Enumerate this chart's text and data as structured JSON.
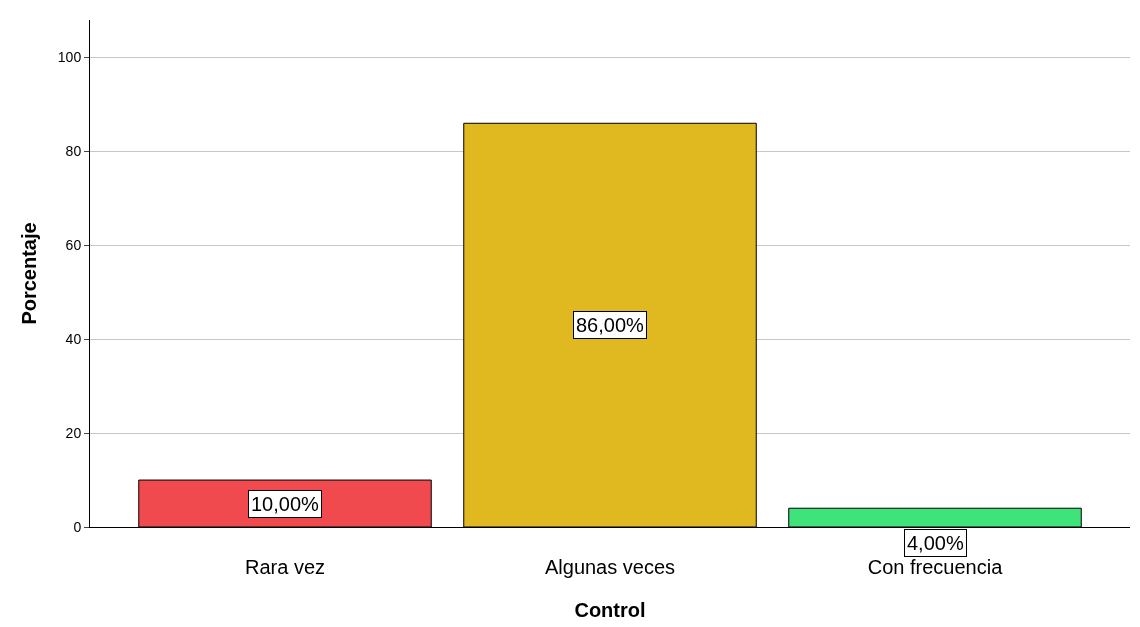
{
  "chart_data": {
    "type": "bar",
    "xlabel": "Control",
    "ylabel": "Porcentaje",
    "categories": [
      "Rara vez",
      "Algunas veces",
      "Con frecuencia"
    ],
    "values": [
      10,
      86,
      4
    ],
    "colors": [
      "#f04a4f",
      "#e0b820",
      "#3ee37a"
    ],
    "value_labels": [
      "10,00%",
      "86,00%",
      "4,00%"
    ],
    "ylim": [
      0,
      108
    ],
    "yticks": [
      0,
      20,
      40,
      60,
      80,
      100
    ],
    "grid": "y"
  }
}
